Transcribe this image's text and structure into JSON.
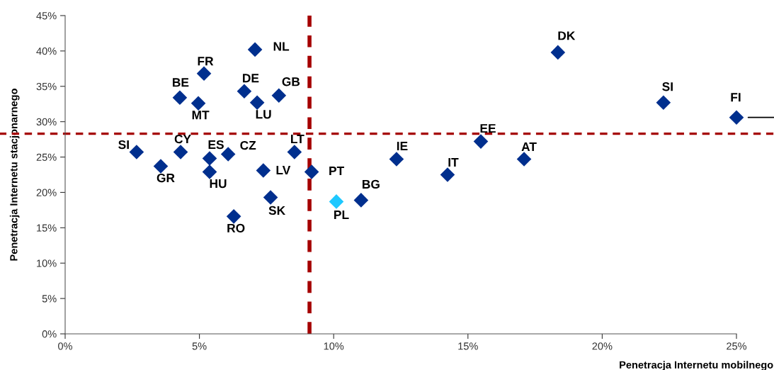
{
  "chart_data": {
    "type": "scatter",
    "xlabel": "Penetracja Internetu mobilnego",
    "ylabel": "Penetracja Internetu stacjonarnego",
    "x": [
      2.66,
      3.56,
      4.3,
      4.27,
      4.96,
      5.17,
      5.38,
      5.38,
      6.07,
      6.28,
      6.67,
      7.07,
      7.15,
      7.38,
      7.65,
      7.96,
      8.54,
      9.18,
      10.1,
      11.02,
      12.34,
      14.24,
      15.48,
      17.09,
      18.35,
      22.28,
      25.0
    ],
    "values": [
      25.7,
      23.7,
      25.7,
      33.4,
      32.6,
      36.8,
      24.8,
      22.9,
      25.4,
      16.6,
      34.3,
      40.2,
      32.7,
      23.1,
      19.3,
      33.7,
      25.7,
      22.9,
      18.7,
      18.9,
      24.7,
      22.5,
      27.2,
      24.7,
      39.8,
      32.7,
      30.6
    ],
    "colors": [
      "#002f8e",
      "#002f8e",
      "#002f8e",
      "#002f8e",
      "#002f8e",
      "#002f8e",
      "#002f8e",
      "#002f8e",
      "#002f8e",
      "#002f8e",
      "#002f8e",
      "#002f8e",
      "#002f8e",
      "#002f8e",
      "#002f8e",
      "#002f8e",
      "#002f8e",
      "#002f8e",
      "#1ec8ff",
      "#002f8e",
      "#002f8e",
      "#002f8e",
      "#002f8e",
      "#002f8e",
      "#002f8e",
      "#002f8e",
      "#002f8e"
    ],
    "marker": "diamond",
    "grid": false,
    "xlim": [
      0,
      25
    ],
    "ylim": [
      0,
      45
    ],
    "xticks": [
      {
        "value": 0,
        "label": "0%"
      },
      {
        "value": 5,
        "label": "5%"
      },
      {
        "value": 10,
        "label": "10%"
      },
      {
        "value": 15,
        "label": "15%"
      },
      {
        "value": 20,
        "label": "20%"
      },
      {
        "value": 25,
        "label": "25%"
      }
    ],
    "yticks": [
      {
        "value": 0,
        "label": "0%"
      },
      {
        "value": 5,
        "label": "5%"
      },
      {
        "value": 10,
        "label": "10%"
      },
      {
        "value": 15,
        "label": "15%"
      },
      {
        "value": 20,
        "label": "20%"
      },
      {
        "value": 25,
        "label": "25%"
      },
      {
        "value": 30,
        "label": "30%"
      },
      {
        "value": 35,
        "label": "35%"
      },
      {
        "value": 40,
        "label": "40%"
      },
      {
        "value": 45,
        "label": "45%"
      }
    ],
    "ref_lines": [
      {
        "axis": "x",
        "value": 9.1,
        "color": "#a50000",
        "line_style": "dashed"
      },
      {
        "axis": "y",
        "value": 28.3,
        "color": "#a50000",
        "line_style": "dashed"
      }
    ],
    "annotations": [
      {
        "text": "SI",
        "x": 2.66,
        "y": 25.7
      },
      {
        "text": "GR",
        "x": 3.56,
        "y": 23.7
      },
      {
        "text": "CY",
        "x": 4.3,
        "y": 25.7
      },
      {
        "text": "BE",
        "x": 4.27,
        "y": 33.4
      },
      {
        "text": "MT",
        "x": 4.96,
        "y": 32.6
      },
      {
        "text": "FR",
        "x": 5.17,
        "y": 36.8
      },
      {
        "text": "ES",
        "x": 5.38,
        "y": 24.8
      },
      {
        "text": "HU",
        "x": 5.38,
        "y": 22.9
      },
      {
        "text": "CZ",
        "x": 6.07,
        "y": 25.4
      },
      {
        "text": "RO",
        "x": 6.28,
        "y": 16.6
      },
      {
        "text": "DE",
        "x": 6.67,
        "y": 34.3
      },
      {
        "text": "NL",
        "x": 7.07,
        "y": 40.2
      },
      {
        "text": "LU",
        "x": 7.15,
        "y": 32.7
      },
      {
        "text": "LV",
        "x": 7.38,
        "y": 23.1
      },
      {
        "text": "SK",
        "x": 7.65,
        "y": 19.3
      },
      {
        "text": "GB",
        "x": 7.96,
        "y": 33.7
      },
      {
        "text": "LT",
        "x": 8.54,
        "y": 25.7
      },
      {
        "text": "PT",
        "x": 9.18,
        "y": 22.9
      },
      {
        "text": "PL",
        "x": 10.1,
        "y": 18.7
      },
      {
        "text": "BG",
        "x": 11.02,
        "y": 18.9
      },
      {
        "text": "IE",
        "x": 12.34,
        "y": 24.7
      },
      {
        "text": "IT",
        "x": 14.24,
        "y": 22.5
      },
      {
        "text": "EE",
        "x": 15.48,
        "y": 27.2
      },
      {
        "text": "AT",
        "x": 17.09,
        "y": 24.7
      },
      {
        "text": "DK",
        "x": 18.35,
        "y": 39.8
      },
      {
        "text": "SI",
        "x": 22.28,
        "y": 32.7
      },
      {
        "text": "FI",
        "x": 25.0,
        "y": 30.6
      }
    ]
  }
}
